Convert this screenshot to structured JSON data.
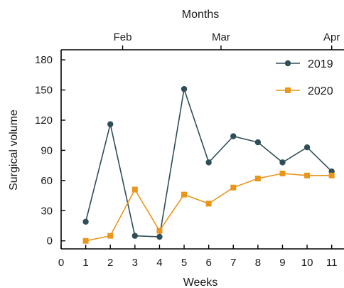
{
  "chart_data": {
    "type": "line",
    "xlabel": "Weeks",
    "ylabel": "Surgical volume",
    "top_axis_label": "Months",
    "x_ticks": [
      0,
      1,
      2,
      3,
      4,
      5,
      6,
      7,
      8,
      9,
      10,
      11
    ],
    "xlim": [
      0,
      11.5
    ],
    "y_ticks": [
      0,
      30,
      60,
      90,
      120,
      150,
      180
    ],
    "ylim": [
      -8,
      190
    ],
    "top_ticks": [
      {
        "label": "Feb",
        "x": 2.5
      },
      {
        "label": "Mar",
        "x": 6.5
      },
      {
        "label": "Apr",
        "x": 11
      }
    ],
    "legend_position": "top-right",
    "series": [
      {
        "name": "2019",
        "marker": "circle",
        "color": "#2e4f57",
        "x": [
          1,
          2,
          3,
          4,
          5,
          6,
          7,
          8,
          9,
          10,
          11
        ],
        "values": [
          19,
          116,
          5,
          4,
          151,
          78,
          104,
          98,
          78,
          93,
          69
        ]
      },
      {
        "name": "2020",
        "marker": "square",
        "color": "#e8961c",
        "x": [
          1,
          2,
          3,
          4,
          5,
          6,
          7,
          8,
          9,
          10,
          11
        ],
        "values": [
          0,
          5,
          51,
          10,
          46,
          37,
          53,
          62,
          67,
          65,
          65
        ]
      }
    ]
  }
}
